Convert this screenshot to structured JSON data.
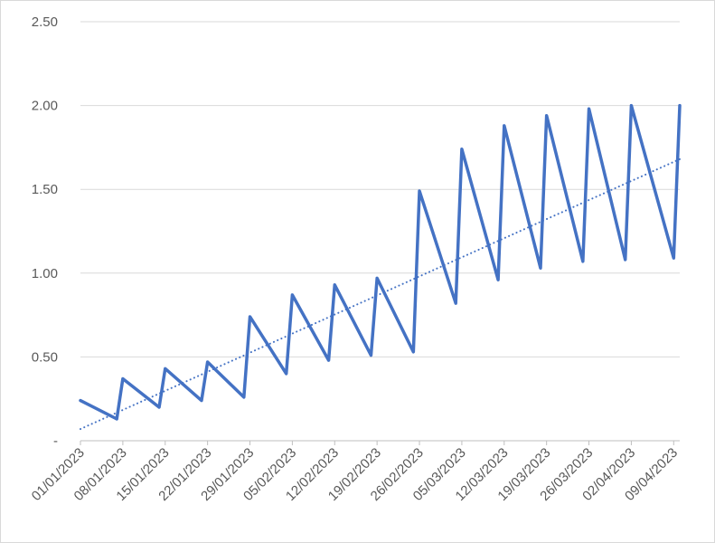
{
  "chart_data": {
    "type": "line",
    "xlim": [
      "01/01/2023",
      "10/04/2023"
    ],
    "xticks": [
      "01/01/2023",
      "08/01/2023",
      "15/01/2023",
      "22/01/2023",
      "29/01/2023",
      "05/02/2023",
      "12/02/2023",
      "19/02/2023",
      "26/02/2023",
      "05/03/2023",
      "12/03/2023",
      "19/03/2023",
      "26/03/2023",
      "02/04/2023",
      "09/04/2023"
    ],
    "ylim": [
      0,
      2.5
    ],
    "yticks": [
      {
        "value": 0,
        "label": "-"
      },
      {
        "value": 0.5,
        "label": "0.50"
      },
      {
        "value": 1,
        "label": "1.00"
      },
      {
        "value": 1.5,
        "label": "1.50"
      },
      {
        "value": 2,
        "label": "2.00"
      },
      {
        "value": 2.5,
        "label": "2.50"
      }
    ],
    "grid": true,
    "series": [
      {
        "color": "#4472c4",
        "style": "solid",
        "x": [
          "01/01/2023",
          "07/01/2023",
          "08/01/2023",
          "14/01/2023",
          "15/01/2023",
          "21/01/2023",
          "22/01/2023",
          "28/01/2023",
          "29/01/2023",
          "04/02/2023",
          "05/02/2023",
          "11/02/2023",
          "12/02/2023",
          "18/02/2023",
          "19/02/2023",
          "25/02/2023",
          "26/02/2023",
          "04/03/2023",
          "05/03/2023",
          "11/03/2023",
          "12/03/2023",
          "18/03/2023",
          "19/03/2023",
          "25/03/2023",
          "26/03/2023",
          "01/04/2023",
          "02/04/2023",
          "09/04/2023",
          "10/04/2023"
        ],
        "values": [
          0.24,
          0.13,
          0.37,
          0.2,
          0.43,
          0.24,
          0.47,
          0.26,
          0.74,
          0.4,
          0.87,
          0.48,
          0.93,
          0.51,
          0.97,
          0.53,
          1.49,
          0.82,
          1.74,
          0.96,
          1.88,
          1.03,
          1.94,
          1.07,
          1.98,
          1.08,
          2.0,
          1.09,
          2.0
        ]
      },
      {
        "color": "#4472c4",
        "style": "dotted",
        "x": [
          "01/01/2023",
          "10/04/2023"
        ],
        "values": [
          0.07,
          1.68
        ]
      }
    ]
  }
}
